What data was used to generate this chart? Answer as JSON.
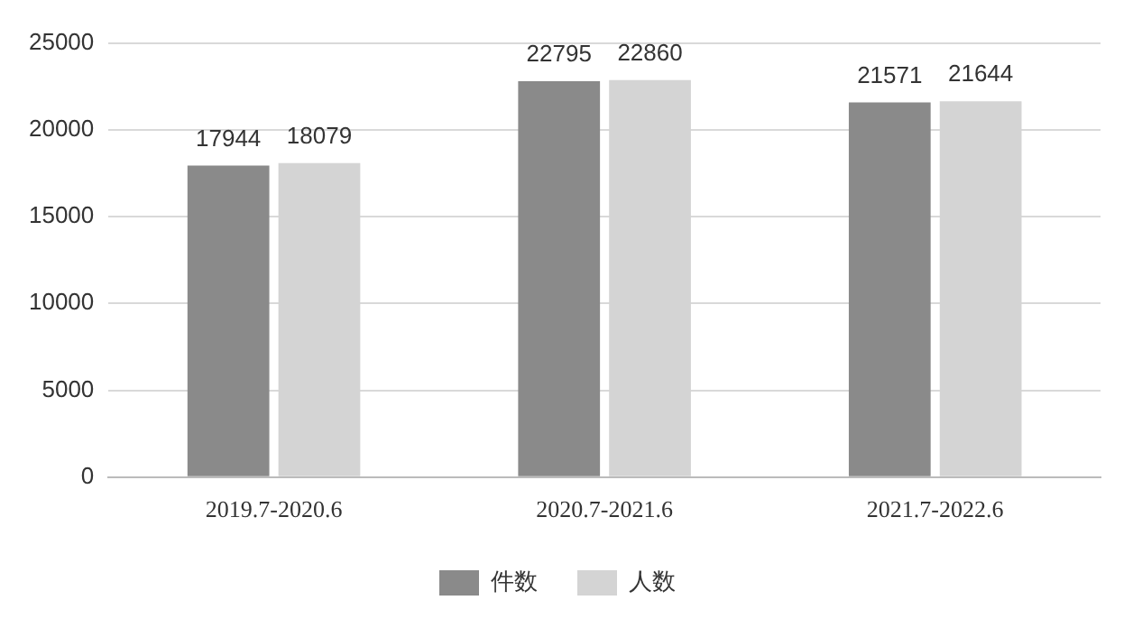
{
  "chart_data": {
    "type": "bar",
    "categories": [
      "2019.7-2020.6",
      "2020.7-2021.6",
      "2021.7-2022.6"
    ],
    "series": [
      {
        "name": "件数",
        "color": "#8a8a8a",
        "values": [
          17944,
          22795,
          21571
        ]
      },
      {
        "name": "人数",
        "color": "#d4d4d4",
        "values": [
          18079,
          22860,
          21644
        ]
      }
    ],
    "ylim": [
      0,
      25000
    ],
    "yticks": [
      0,
      5000,
      10000,
      15000,
      20000,
      25000
    ],
    "grid": "y",
    "legend": "bottom",
    "data_labels": true
  }
}
